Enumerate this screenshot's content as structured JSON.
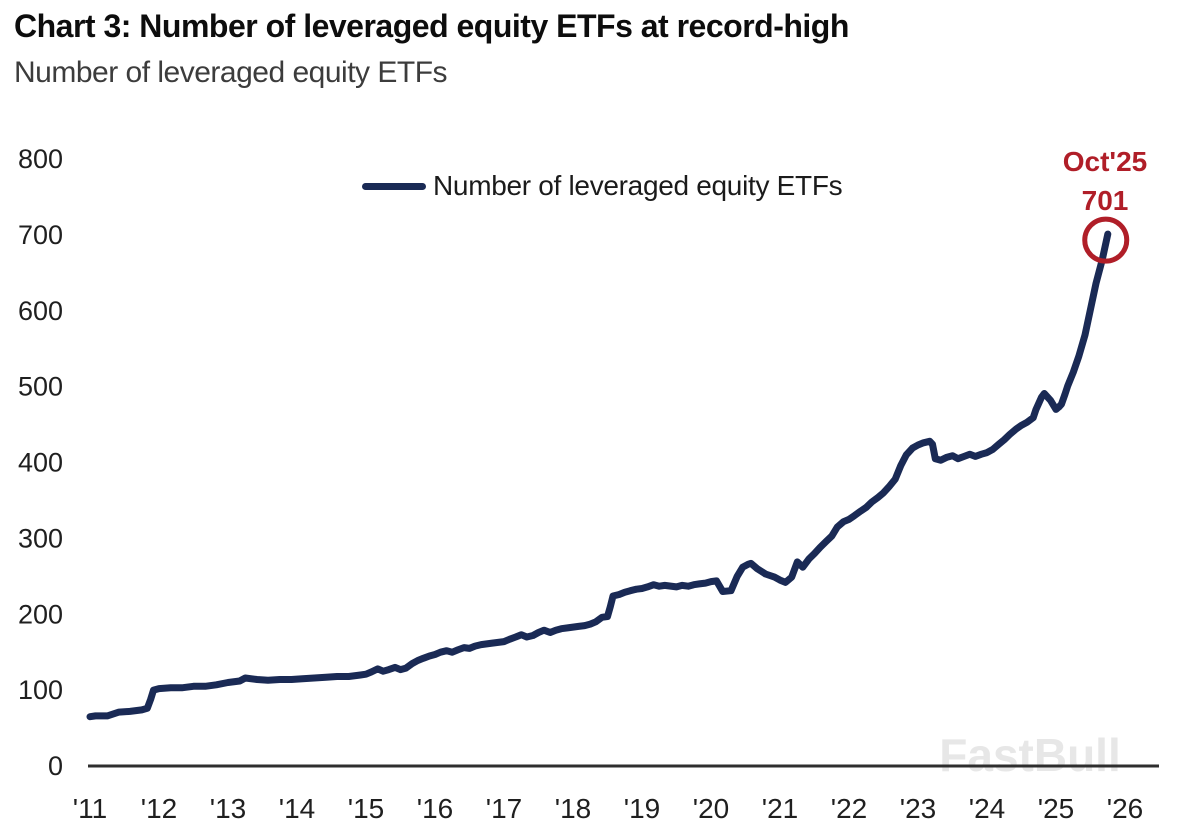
{
  "header": {
    "title": "Chart 3: Number of leveraged equity ETFs at record-high",
    "subtitle": "Number of leveraged equity ETFs"
  },
  "legend": {
    "label": "Number of leveraged equity ETFs"
  },
  "annotation": {
    "label": "Oct'25",
    "value": "701"
  },
  "watermark": "FastBull",
  "colors": {
    "series": "#1a2a55",
    "annotation": "#b01e28",
    "axis": "#2e2e2e",
    "tick_text": "#1f1f1f",
    "watermark": "#e7e7e7"
  },
  "chart_data": {
    "type": "line",
    "title": "Chart 3: Number of leveraged equity ETFs at record-high",
    "subtitle": "Number of leveraged equity ETFs",
    "xlabel": "",
    "ylabel": "",
    "grid": false,
    "legend_position": "top-center",
    "ylim": [
      0,
      800
    ],
    "xlim": [
      2011,
      2026.5
    ],
    "y_ticks": [
      0,
      100,
      200,
      300,
      400,
      500,
      600,
      700,
      800
    ],
    "x_tick_labels": [
      "'11",
      "'12",
      "'13",
      "'14",
      "'15",
      "'16",
      "'17",
      "'18",
      "'19",
      "'20",
      "'21",
      "'22",
      "'23",
      "'24",
      "'25",
      "'26"
    ],
    "x_tick_years": [
      2011,
      2012,
      2013,
      2014,
      2015,
      2016,
      2017,
      2018,
      2019,
      2020,
      2021,
      2022,
      2023,
      2024,
      2025,
      2026
    ],
    "annotations": [
      {
        "text": "Oct'25",
        "value_text": "701",
        "x": 2025.75,
        "y": 701,
        "style": "circled",
        "color": "#b01e28"
      }
    ],
    "series": [
      {
        "name": "Number of leveraged equity ETFs",
        "color": "#1a2a55",
        "points": [
          [
            2011.0,
            65
          ],
          [
            2011.08,
            66
          ],
          [
            2011.25,
            66
          ],
          [
            2011.42,
            71
          ],
          [
            2011.58,
            72
          ],
          [
            2011.75,
            74
          ],
          [
            2011.83,
            76
          ],
          [
            2011.88,
            88
          ],
          [
            2011.92,
            100
          ],
          [
            2012.0,
            102
          ],
          [
            2012.17,
            103
          ],
          [
            2012.33,
            103
          ],
          [
            2012.5,
            105
          ],
          [
            2012.67,
            105
          ],
          [
            2012.83,
            107
          ],
          [
            2013.0,
            110
          ],
          [
            2013.17,
            112
          ],
          [
            2013.25,
            116
          ],
          [
            2013.42,
            114
          ],
          [
            2013.58,
            113
          ],
          [
            2013.75,
            114
          ],
          [
            2013.92,
            114
          ],
          [
            2014.08,
            115
          ],
          [
            2014.25,
            116
          ],
          [
            2014.42,
            117
          ],
          [
            2014.58,
            118
          ],
          [
            2014.75,
            118
          ],
          [
            2014.92,
            120
          ],
          [
            2015.0,
            121
          ],
          [
            2015.08,
            124
          ],
          [
            2015.17,
            128
          ],
          [
            2015.25,
            125
          ],
          [
            2015.33,
            127
          ],
          [
            2015.42,
            130
          ],
          [
            2015.5,
            127
          ],
          [
            2015.58,
            129
          ],
          [
            2015.67,
            135
          ],
          [
            2015.75,
            139
          ],
          [
            2015.83,
            142
          ],
          [
            2015.92,
            145
          ],
          [
            2016.0,
            147
          ],
          [
            2016.08,
            150
          ],
          [
            2016.17,
            152
          ],
          [
            2016.25,
            150
          ],
          [
            2016.33,
            153
          ],
          [
            2016.42,
            156
          ],
          [
            2016.5,
            155
          ],
          [
            2016.58,
            158
          ],
          [
            2016.67,
            160
          ],
          [
            2016.83,
            162
          ],
          [
            2017.0,
            164
          ],
          [
            2017.08,
            167
          ],
          [
            2017.17,
            170
          ],
          [
            2017.25,
            173
          ],
          [
            2017.33,
            170
          ],
          [
            2017.42,
            172
          ],
          [
            2017.5,
            176
          ],
          [
            2017.58,
            179
          ],
          [
            2017.67,
            176
          ],
          [
            2017.75,
            179
          ],
          [
            2017.83,
            181
          ],
          [
            2017.92,
            182
          ],
          [
            2018.08,
            184
          ],
          [
            2018.17,
            185
          ],
          [
            2018.25,
            187
          ],
          [
            2018.33,
            190
          ],
          [
            2018.42,
            196
          ],
          [
            2018.5,
            197
          ],
          [
            2018.54,
            210
          ],
          [
            2018.58,
            224
          ],
          [
            2018.67,
            226
          ],
          [
            2018.75,
            229
          ],
          [
            2018.83,
            231
          ],
          [
            2018.92,
            233
          ],
          [
            2019.0,
            234
          ],
          [
            2019.08,
            236
          ],
          [
            2019.17,
            239
          ],
          [
            2019.25,
            237
          ],
          [
            2019.33,
            238
          ],
          [
            2019.5,
            236
          ],
          [
            2019.58,
            238
          ],
          [
            2019.67,
            237
          ],
          [
            2019.75,
            239
          ],
          [
            2019.83,
            240
          ],
          [
            2019.92,
            241
          ],
          [
            2020.0,
            243
          ],
          [
            2020.08,
            244
          ],
          [
            2020.17,
            230
          ],
          [
            2020.29,
            231
          ],
          [
            2020.38,
            250
          ],
          [
            2020.46,
            262
          ],
          [
            2020.54,
            266
          ],
          [
            2020.58,
            267
          ],
          [
            2020.67,
            260
          ],
          [
            2020.79,
            253
          ],
          [
            2020.92,
            249
          ],
          [
            2021.0,
            245
          ],
          [
            2021.08,
            242
          ],
          [
            2021.17,
            249
          ],
          [
            2021.25,
            269
          ],
          [
            2021.33,
            262
          ],
          [
            2021.42,
            273
          ],
          [
            2021.5,
            280
          ],
          [
            2021.58,
            288
          ],
          [
            2021.67,
            296
          ],
          [
            2021.75,
            303
          ],
          [
            2021.83,
            315
          ],
          [
            2021.92,
            322
          ],
          [
            2022.0,
            325
          ],
          [
            2022.08,
            330
          ],
          [
            2022.17,
            336
          ],
          [
            2022.25,
            341
          ],
          [
            2022.33,
            348
          ],
          [
            2022.42,
            354
          ],
          [
            2022.5,
            360
          ],
          [
            2022.58,
            368
          ],
          [
            2022.67,
            378
          ],
          [
            2022.75,
            396
          ],
          [
            2022.83,
            410
          ],
          [
            2022.92,
            419
          ],
          [
            2023.0,
            423
          ],
          [
            2023.08,
            426
          ],
          [
            2023.17,
            428
          ],
          [
            2023.21,
            424
          ],
          [
            2023.25,
            405
          ],
          [
            2023.33,
            403
          ],
          [
            2023.42,
            407
          ],
          [
            2023.5,
            409
          ],
          [
            2023.58,
            405
          ],
          [
            2023.67,
            408
          ],
          [
            2023.75,
            411
          ],
          [
            2023.83,
            408
          ],
          [
            2023.92,
            411
          ],
          [
            2024.0,
            413
          ],
          [
            2024.08,
            417
          ],
          [
            2024.17,
            424
          ],
          [
            2024.25,
            430
          ],
          [
            2024.33,
            437
          ],
          [
            2024.42,
            444
          ],
          [
            2024.5,
            449
          ],
          [
            2024.58,
            453
          ],
          [
            2024.67,
            459
          ],
          [
            2024.71,
            470
          ],
          [
            2024.79,
            486
          ],
          [
            2024.83,
            491
          ],
          [
            2024.88,
            486
          ],
          [
            2024.92,
            482
          ],
          [
            2025.0,
            470
          ],
          [
            2025.04,
            473
          ],
          [
            2025.08,
            477
          ],
          [
            2025.13,
            490
          ],
          [
            2025.17,
            501
          ],
          [
            2025.25,
            519
          ],
          [
            2025.33,
            540
          ],
          [
            2025.42,
            568
          ],
          [
            2025.5,
            602
          ],
          [
            2025.58,
            636
          ],
          [
            2025.67,
            667
          ],
          [
            2025.75,
            701
          ]
        ]
      }
    ]
  }
}
